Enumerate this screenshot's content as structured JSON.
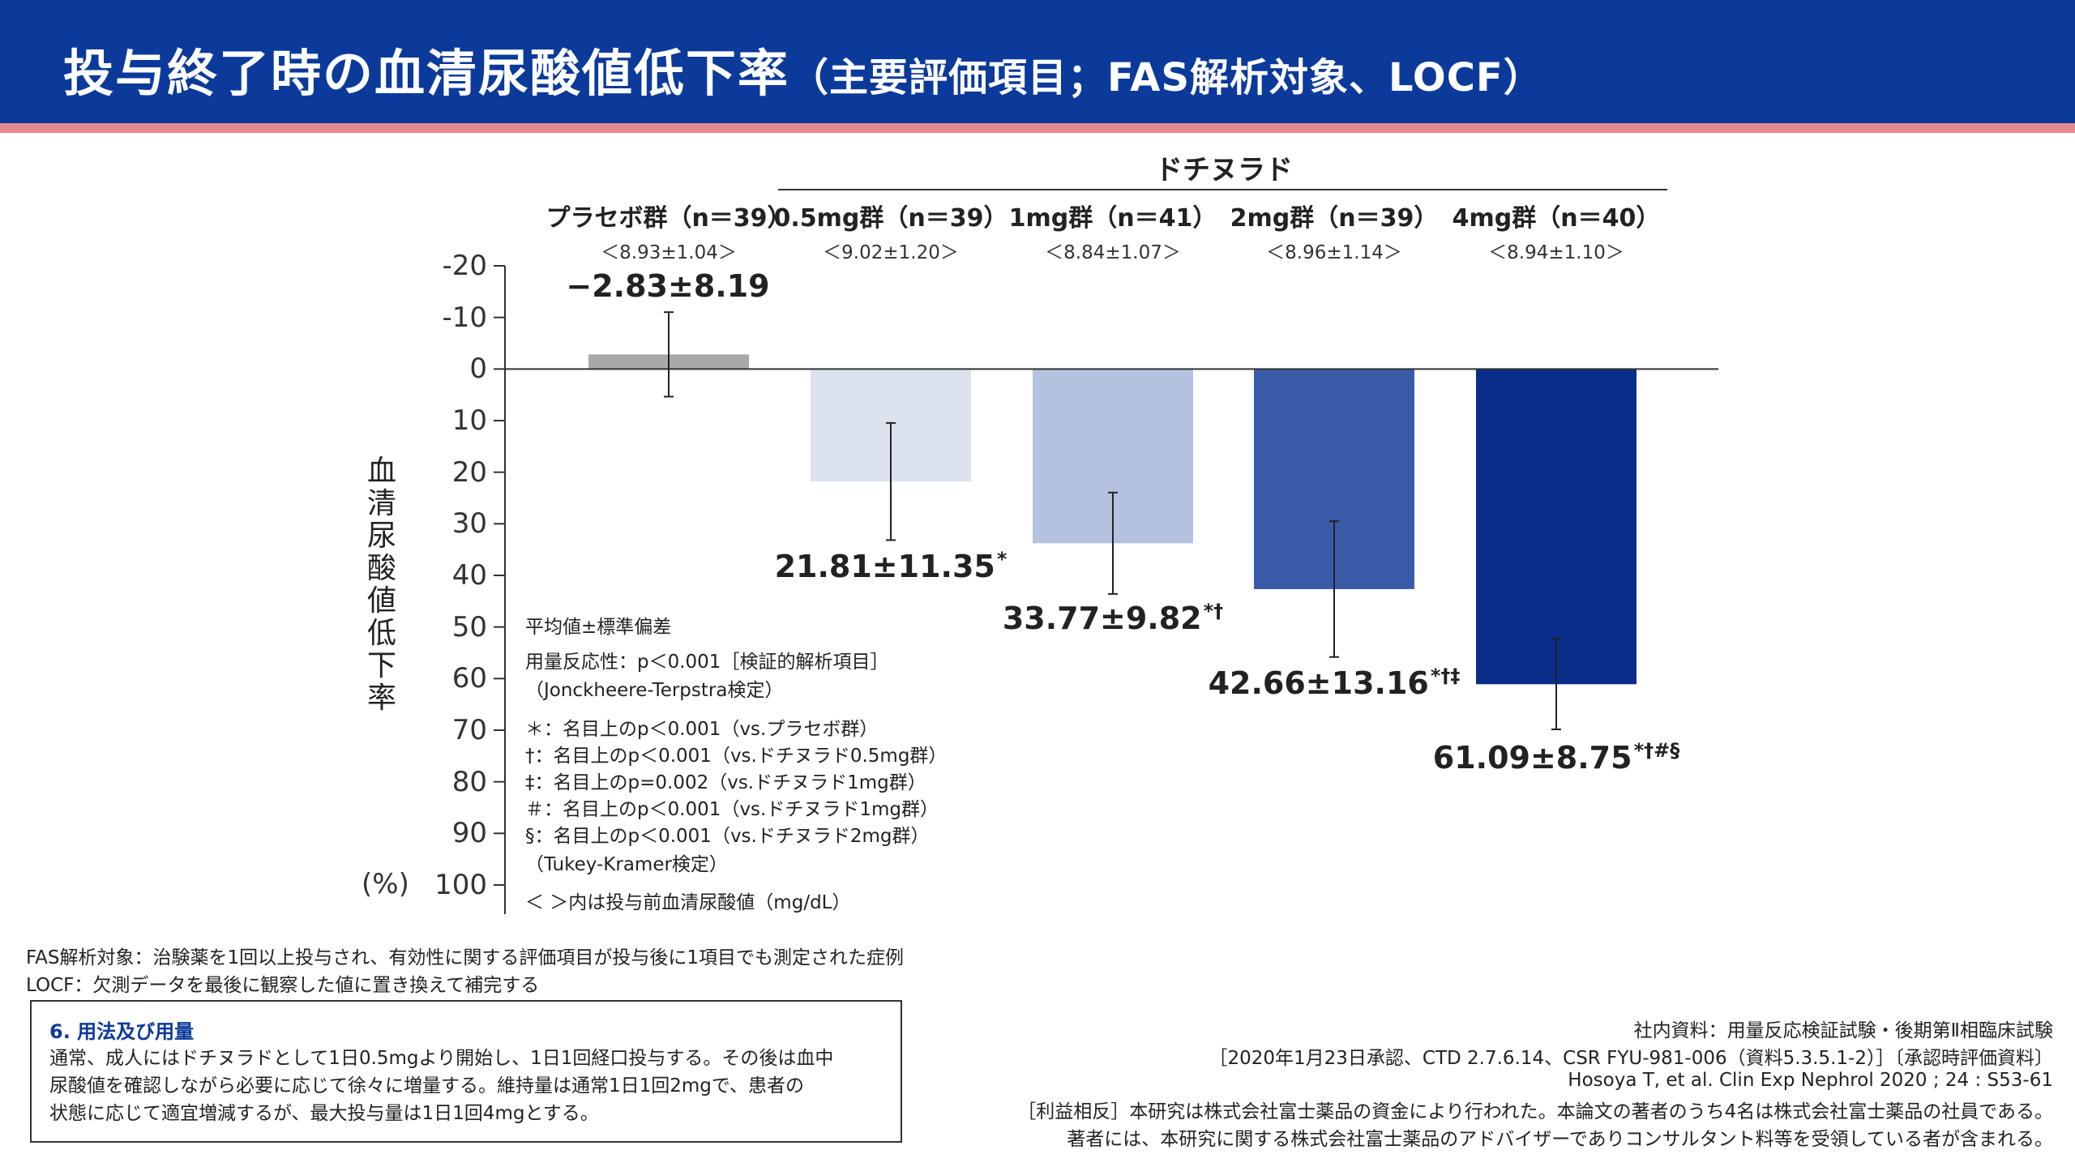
{
  "title": {
    "main": "投与終了時の血清尿酸値低下率",
    "sub": "（主要評価項目；FAS解析対象、LOCF）"
  },
  "colors": {
    "header_bg": "#0b3a9a",
    "header_stripe": "#e88a8d"
  },
  "drug_label": "ドチヌラド",
  "groups": [
    {
      "name": "プラセボ群（n＝39）",
      "baseline": "＜8.93±1.04＞"
    },
    {
      "name": "0.5mg群（n＝39）",
      "baseline": "＜9.02±1.20＞"
    },
    {
      "name": "1mg群（n＝41）",
      "baseline": "＜8.84±1.07＞"
    },
    {
      "name": "2mg群（n＝39）",
      "baseline": "＜8.96±1.14＞"
    },
    {
      "name": "4mg群（n＝40）",
      "baseline": "＜8.94±1.10＞"
    }
  ],
  "chart_data": {
    "type": "bar",
    "categories": [
      "プラセボ群（n＝39）",
      "0.5mg群（n＝39）",
      "1mg群（n＝41）",
      "2mg群（n＝39）",
      "4mg群（n＝40）"
    ],
    "values": [
      -2.83,
      21.81,
      33.77,
      42.66,
      61.09
    ],
    "errors": [
      8.19,
      11.35,
      9.82,
      13.16,
      8.75
    ],
    "bar_colors": [
      "#a9a9a9",
      "#dce3ef",
      "#b4c2e0",
      "#3a5ba8",
      "#0b2d8a"
    ],
    "value_labels": [
      {
        "text": "−2.83±8.19",
        "marks": ""
      },
      {
        "text": "21.81±11.35",
        "marks": "*"
      },
      {
        "text": "33.77±9.82",
        "marks": "*†"
      },
      {
        "text": "42.66±13.16",
        "marks": "*†‡"
      },
      {
        "text": "61.09±8.75",
        "marks": "*†#§"
      }
    ],
    "ylabel": "血清尿酸値低下率",
    "yunit": "(%)",
    "ylim": [
      -20,
      100
    ],
    "y_inverted": true,
    "yticks": [
      "-20",
      "-10",
      "0",
      "10",
      "20",
      "30",
      "40",
      "50",
      "60",
      "70",
      "80",
      "90",
      "100"
    ],
    "grid": false
  },
  "legend_notes": [
    "平均値±標準偏差",
    "用量反応性：p＜0.001［検証的解析項目］",
    "（Jonckheere-Terpstra検定）",
    "＊：名目上のp＜0.001（vs.プラセボ群）",
    "†：名目上のp＜0.001（vs.ドチヌラド0.5mg群）",
    "‡：名目上のp=0.002（vs.ドチヌラド1mg群）",
    "＃：名目上のp＜0.001（vs.ドチヌラド1mg群）",
    "§：名目上のp＜0.001（vs.ドチヌラド2mg群）",
    "（Tukey-Kramer検定）",
    "＜ ＞内は投与前血清尿酸値（mg/dL）"
  ],
  "footnotes": [
    "FAS解析対象：治験薬を1回以上投与され、有効性に関する評価項目が投与後に1項目でも測定された症例",
    "LOCF：欠測データを最後に観察した値に置き換えて補完する"
  ],
  "dosage": {
    "title": "6. 用法及び用量",
    "lines": [
      "通常、成人にはドチヌラドとして1日0.5mgより開始し、1日1回経口投与する。その後は血中",
      "尿酸値を確認しながら必要に応じて徐々に増量する。維持量は通常1日1回2mgで、患者の",
      "状態に応じて適宜増減するが、最大投与量は1日1回4mgとする。"
    ]
  },
  "source": [
    "社内資料：用量反応検証試験・後期第Ⅱ相臨床試験",
    "［2020年1月23日承認、CTD 2.7.6.14、CSR FYU-981-006（資料5.3.5.1-2）］〔承認時評価資料〕",
    "Hosoya T, et al. Clin Exp Nephrol 2020 ; 24 : S53-61",
    "［利益相反］本研究は株式会社富士薬品の資金により行われた。本論文の著者のうち4名は株式会社富士薬品の社員である。",
    "著者には、本研究に関する株式会社富士薬品のアドバイザーでありコンサルタント料等を受領している者が含まれる。"
  ]
}
